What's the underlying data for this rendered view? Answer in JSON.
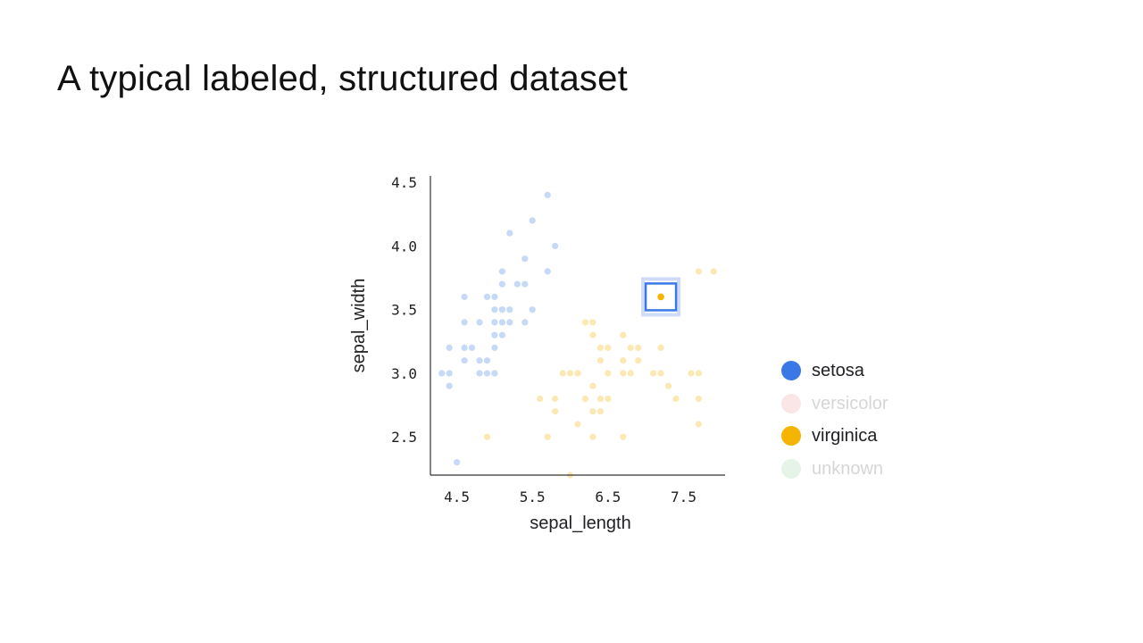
{
  "slide": {
    "title": "A typical labeled, structured dataset"
  },
  "legend": [
    {
      "label": "setosa",
      "color": "#3b78e7",
      "active": true
    },
    {
      "label": "versicolor",
      "color": "#f4c7c3",
      "active": false
    },
    {
      "label": "virginica",
      "color": "#f4b400",
      "active": true
    },
    {
      "label": "unknown",
      "color": "#c8e6c9",
      "active": false
    }
  ],
  "chart_data": {
    "type": "scatter",
    "xlabel": "sepal_length",
    "ylabel": "sepal_width",
    "xlim": [
      4.15,
      8.05
    ],
    "ylim": [
      2.2,
      4.55
    ],
    "xticks": [
      "4.5",
      "5.5",
      "6.5",
      "7.5"
    ],
    "yticks": [
      "2.5",
      "3.0",
      "3.5",
      "4.0",
      "4.5"
    ],
    "highlighted_point": {
      "series": "virginica",
      "x": 7.2,
      "y": 3.6
    },
    "series": [
      {
        "name": "setosa",
        "color": "#c6d9f6",
        "points": [
          [
            4.3,
            3.0
          ],
          [
            4.4,
            2.9
          ],
          [
            4.4,
            3.0
          ],
          [
            4.4,
            3.2
          ],
          [
            4.5,
            2.3
          ],
          [
            4.6,
            3.1
          ],
          [
            4.6,
            3.2
          ],
          [
            4.6,
            3.4
          ],
          [
            4.6,
            3.6
          ],
          [
            4.7,
            3.2
          ],
          [
            4.8,
            3.0
          ],
          [
            4.8,
            3.1
          ],
          [
            4.8,
            3.4
          ],
          [
            4.9,
            3.0
          ],
          [
            4.9,
            3.1
          ],
          [
            4.9,
            3.6
          ],
          [
            5.0,
            3.0
          ],
          [
            5.0,
            3.2
          ],
          [
            5.0,
            3.3
          ],
          [
            5.0,
            3.4
          ],
          [
            5.0,
            3.5
          ],
          [
            5.0,
            3.6
          ],
          [
            5.1,
            3.3
          ],
          [
            5.1,
            3.4
          ],
          [
            5.1,
            3.5
          ],
          [
            5.1,
            3.7
          ],
          [
            5.1,
            3.8
          ],
          [
            5.2,
            3.4
          ],
          [
            5.2,
            3.5
          ],
          [
            5.2,
            4.1
          ],
          [
            5.3,
            3.7
          ],
          [
            5.4,
            3.4
          ],
          [
            5.4,
            3.7
          ],
          [
            5.4,
            3.9
          ],
          [
            5.5,
            3.5
          ],
          [
            5.5,
            4.2
          ],
          [
            5.7,
            3.8
          ],
          [
            5.7,
            4.4
          ],
          [
            5.8,
            4.0
          ],
          [
            5.0,
            3.0
          ],
          [
            5.1,
            3.5
          ]
        ]
      },
      {
        "name": "virginica",
        "color": "#fce8b2",
        "points": [
          [
            4.9,
            2.5
          ],
          [
            5.6,
            2.8
          ],
          [
            5.7,
            2.5
          ],
          [
            5.8,
            2.7
          ],
          [
            5.8,
            2.8
          ],
          [
            6.0,
            2.2
          ],
          [
            6.0,
            3.0
          ],
          [
            6.1,
            2.6
          ],
          [
            6.1,
            3.0
          ],
          [
            6.2,
            2.8
          ],
          [
            6.2,
            3.4
          ],
          [
            6.3,
            2.5
          ],
          [
            6.3,
            2.7
          ],
          [
            6.3,
            2.9
          ],
          [
            6.3,
            3.3
          ],
          [
            6.3,
            3.4
          ],
          [
            6.4,
            2.7
          ],
          [
            6.4,
            2.8
          ],
          [
            6.4,
            3.1
          ],
          [
            6.4,
            3.2
          ],
          [
            6.5,
            3.0
          ],
          [
            6.5,
            3.2
          ],
          [
            6.7,
            2.5
          ],
          [
            6.7,
            3.0
          ],
          [
            6.7,
            3.1
          ],
          [
            6.7,
            3.3
          ],
          [
            6.8,
            3.0
          ],
          [
            6.8,
            3.2
          ],
          [
            6.9,
            3.1
          ],
          [
            6.9,
            3.2
          ],
          [
            7.1,
            3.0
          ],
          [
            7.2,
            3.0
          ],
          [
            7.2,
            3.2
          ],
          [
            7.3,
            2.9
          ],
          [
            7.4,
            2.8
          ],
          [
            7.6,
            3.0
          ],
          [
            7.7,
            2.6
          ],
          [
            7.7,
            2.8
          ],
          [
            7.7,
            3.0
          ],
          [
            7.7,
            3.8
          ],
          [
            7.9,
            3.8
          ],
          [
            6.1,
            3.0
          ],
          [
            5.9,
            3.0
          ],
          [
            6.5,
            2.8
          ]
        ]
      }
    ]
  }
}
